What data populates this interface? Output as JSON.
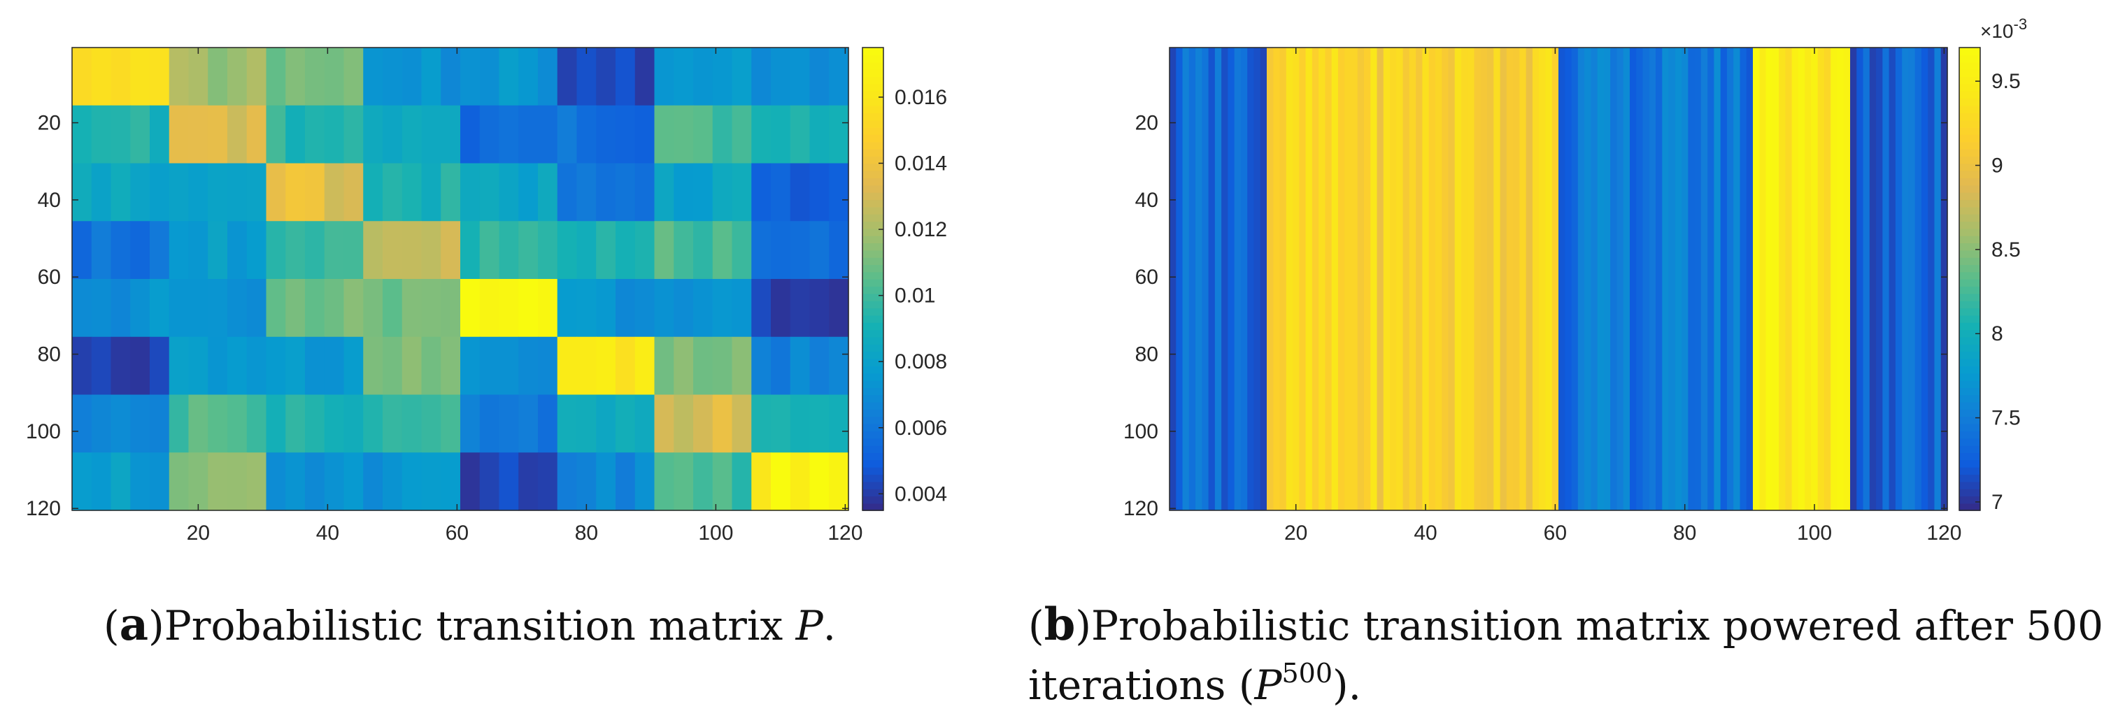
{
  "chart_data": [
    {
      "panel": "a",
      "type": "heatmap",
      "caption": {
        "label": "a",
        "text": "Probabilistic transition matrix ",
        "symbol": "P",
        "end": "."
      },
      "x_ticks": [
        20,
        40,
        60,
        80,
        100,
        120
      ],
      "y_ticks": [
        20,
        40,
        60,
        80,
        100,
        120
      ],
      "xlim": [
        0.5,
        120.5
      ],
      "ylim": [
        0.5,
        120.5
      ],
      "block_size": 15,
      "block_values": [
        [
          0.0162,
          0.0118,
          0.0112,
          0.0073,
          0.0074,
          0.0042,
          0.0073,
          0.0072
        ],
        [
          0.0093,
          0.0135,
          0.0095,
          0.0082,
          0.0055,
          0.0057,
          0.0102,
          0.0092
        ],
        [
          0.0082,
          0.0082,
          0.0134,
          0.0092,
          0.0082,
          0.0058,
          0.0082,
          0.0052
        ],
        [
          0.0058,
          0.0078,
          0.0095,
          0.0132,
          0.0095,
          0.0092,
          0.0102,
          0.0055
        ],
        [
          0.0072,
          0.0075,
          0.011,
          0.011,
          0.0168,
          0.0072,
          0.0073,
          0.0041
        ],
        [
          0.004,
          0.0075,
          0.0077,
          0.0115,
          0.0072,
          0.0158,
          0.0112,
          0.0065
        ],
        [
          0.0068,
          0.0102,
          0.0092,
          0.0098,
          0.0062,
          0.0088,
          0.0132,
          0.0088
        ],
        [
          0.0078,
          0.0115,
          0.0072,
          0.0072,
          0.0042,
          0.0068,
          0.01,
          0.0168
        ]
      ],
      "colorbar": {
        "ticks": [
          0.004,
          0.006,
          0.008,
          0.01,
          0.012,
          0.014,
          0.016
        ],
        "tick_labels": [
          "0.004",
          "0.006",
          "0.008",
          "0.01",
          "0.012",
          "0.014",
          "0.016"
        ],
        "range": [
          0.0035,
          0.0175
        ]
      }
    },
    {
      "panel": "b",
      "type": "heatmap",
      "caption": {
        "label": "b",
        "text": "Probabilistic transition matrix powered after 500",
        "line2_text": "iterations (",
        "symbol": "P",
        "superscript": "500",
        "end": ")."
      },
      "x_ticks": [
        20,
        40,
        60,
        80,
        100,
        120
      ],
      "y_ticks": [
        20,
        40,
        60,
        80,
        100,
        120
      ],
      "xlim": [
        0.5,
        120.5
      ],
      "ylim": [
        0.5,
        120.5
      ],
      "column_groups": [
        {
          "start": 1,
          "end": 15,
          "value": 7.35
        },
        {
          "start": 16,
          "end": 60,
          "value": 9.2
        },
        {
          "start": 61,
          "end": 90,
          "value": 7.45
        },
        {
          "start": 91,
          "end": 105,
          "value": 9.45
        },
        {
          "start": 106,
          "end": 120,
          "value": 7.3
        }
      ],
      "colorbar": {
        "exponent_label": "×10",
        "exponent_power": "-3",
        "ticks": [
          7,
          7.5,
          8,
          8.5,
          9,
          9.5
        ],
        "tick_labels": [
          "7",
          "7.5",
          "8",
          "8.5",
          "9",
          "9.5"
        ],
        "range": [
          6.95,
          9.7
        ]
      }
    }
  ]
}
